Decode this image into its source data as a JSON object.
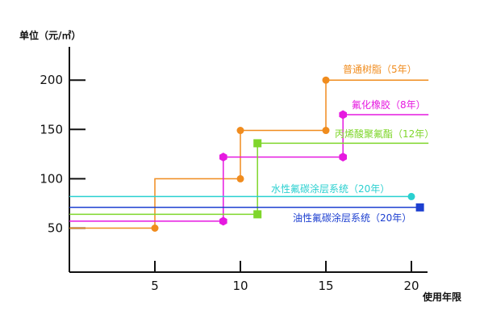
{
  "chart_data": {
    "type": "line",
    "ylabel": "单位（元/㎡）",
    "xlabel": "使用年限",
    "xlim": [
      0,
      21
    ],
    "ylim": [
      0,
      230
    ],
    "xticks": [
      5,
      10,
      15,
      20
    ],
    "yticks": [
      50,
      100,
      150,
      200
    ],
    "grid": false,
    "legend": "inline labels near series (right side)",
    "series": [
      {
        "name": "普通树脂（5年）",
        "color": "#f08c1e",
        "marker": "circle",
        "points": [
          [
            0,
            50
          ],
          [
            5,
            50
          ],
          [
            5,
            100
          ],
          [
            10,
            100
          ],
          [
            10,
            149
          ],
          [
            15,
            149
          ],
          [
            15,
            200
          ],
          [
            21,
            200
          ]
        ],
        "marked": [
          [
            5,
            50
          ],
          [
            10,
            100
          ],
          [
            10,
            149
          ],
          [
            15,
            149
          ],
          [
            15,
            200
          ]
        ]
      },
      {
        "name": "氟化橡胶（8年）",
        "color": "#e619e0",
        "marker": "hexagon",
        "points": [
          [
            0,
            57
          ],
          [
            9,
            57
          ],
          [
            9,
            122
          ],
          [
            16,
            122
          ],
          [
            16,
            165
          ],
          [
            21,
            165
          ]
        ],
        "marked": [
          [
            9,
            57
          ],
          [
            9,
            122
          ],
          [
            16,
            122
          ],
          [
            16,
            165
          ]
        ]
      },
      {
        "name": "丙烯酸聚氟酯（12年）",
        "color": "#7fd62b",
        "marker": "square",
        "points": [
          [
            0,
            64
          ],
          [
            11,
            64
          ],
          [
            11,
            136
          ],
          [
            21,
            136
          ]
        ],
        "marked": [
          [
            11,
            64
          ],
          [
            11,
            136
          ]
        ]
      },
      {
        "name": "水性氟碳涂层系统（20年）",
        "color": "#2ad0d0",
        "marker": "circle",
        "points": [
          [
            0,
            82
          ],
          [
            20,
            82
          ]
        ],
        "marked": [
          [
            20,
            82
          ]
        ]
      },
      {
        "name": "油性氟碳涂层系统（20年）",
        "color": "#1c3fd0",
        "marker": "square",
        "points": [
          [
            0,
            71
          ],
          [
            20.5,
            71
          ]
        ],
        "marked": [
          [
            20.5,
            71
          ]
        ]
      }
    ]
  }
}
